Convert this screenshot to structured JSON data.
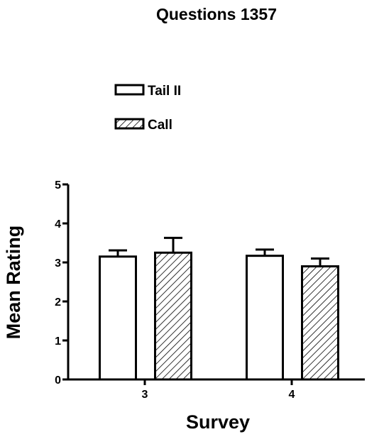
{
  "chart_data": {
    "type": "bar",
    "title": "Questions 1357",
    "xlabel": "Survey",
    "ylabel": "Mean Rating",
    "categories": [
      "3",
      "4"
    ],
    "ylim": [
      0,
      5
    ],
    "yticks": [
      "0",
      "1",
      "2",
      "3",
      "4",
      "5"
    ],
    "legend_position": "top-left",
    "series": [
      {
        "name": "Tail II",
        "fill": "open",
        "values": [
          3.15,
          3.17
        ],
        "errors": [
          0.16,
          0.16
        ]
      },
      {
        "name": "Call",
        "fill": "hatched",
        "values": [
          3.25,
          2.9
        ],
        "errors": [
          0.38,
          0.2
        ]
      }
    ]
  }
}
